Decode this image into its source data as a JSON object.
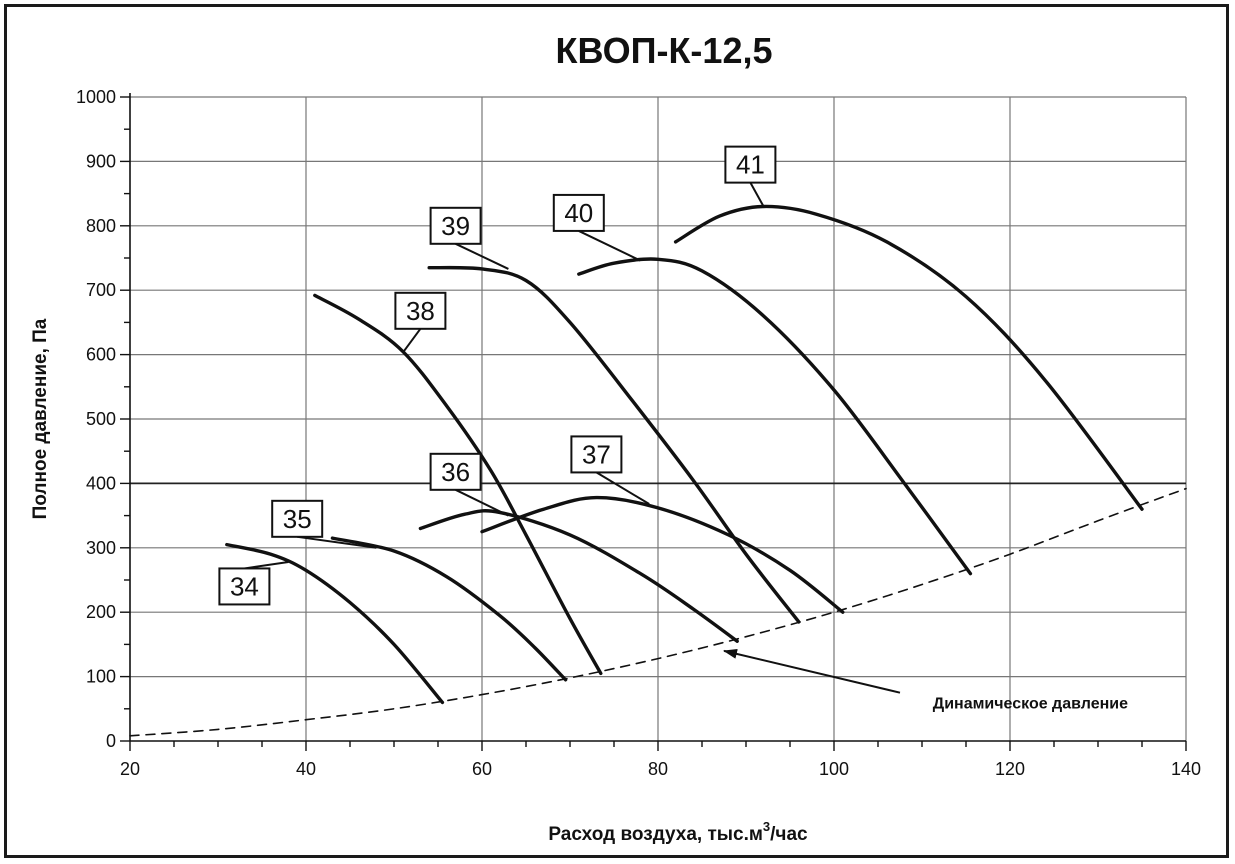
{
  "chart_data": {
    "type": "line",
    "title": "КВОП-К-12,5",
    "xlabel": "Расход воздуха, тыс.м",
    "xlabel_sup": "3",
    "xlabel_suffix": "/час",
    "ylabel": "Полное давление, Па",
    "xlim": [
      20,
      140
    ],
    "ylim": [
      0,
      1000
    ],
    "x_ticks": [
      "20",
      "40",
      "60",
      "80",
      "100",
      "120",
      "140"
    ],
    "y_ticks": [
      "0",
      "100",
      "200",
      "300",
      "400",
      "500",
      "600",
      "700",
      "800",
      "900",
      "1000"
    ],
    "grid": true,
    "series": [
      {
        "name": "34",
        "points": [
          [
            31,
            305
          ],
          [
            36,
            290
          ],
          [
            40,
            265
          ],
          [
            45,
            215
          ],
          [
            50,
            150
          ],
          [
            55.5,
            60
          ]
        ]
      },
      {
        "name": "35",
        "points": [
          [
            43,
            315
          ],
          [
            50,
            295
          ],
          [
            56,
            255
          ],
          [
            62,
            195
          ],
          [
            66,
            145
          ],
          [
            69.5,
            95
          ]
        ]
      },
      {
        "name": "36",
        "points": [
          [
            53,
            330
          ],
          [
            58,
            352
          ],
          [
            62,
            355
          ],
          [
            70,
            320
          ],
          [
            78,
            260
          ],
          [
            84,
            205
          ],
          [
            89,
            155
          ]
        ]
      },
      {
        "name": "37",
        "points": [
          [
            60,
            325
          ],
          [
            67,
            360
          ],
          [
            73,
            378
          ],
          [
            80,
            362
          ],
          [
            88,
            320
          ],
          [
            95,
            265
          ],
          [
            101,
            200
          ]
        ]
      },
      {
        "name": "38",
        "points": [
          [
            41,
            692
          ],
          [
            46,
            655
          ],
          [
            51,
            605
          ],
          [
            56,
            520
          ],
          [
            61,
            420
          ],
          [
            65,
            320
          ],
          [
            70,
            190
          ],
          [
            73.5,
            105
          ]
        ]
      },
      {
        "name": "39",
        "points": [
          [
            54,
            735
          ],
          [
            60,
            733
          ],
          [
            65,
            715
          ],
          [
            70,
            650
          ],
          [
            77,
            530
          ],
          [
            84,
            405
          ],
          [
            90,
            290
          ],
          [
            96,
            185
          ]
        ]
      },
      {
        "name": "40",
        "points": [
          [
            71,
            725
          ],
          [
            75,
            742
          ],
          [
            80,
            748
          ],
          [
            85,
            730
          ],
          [
            92,
            660
          ],
          [
            100,
            545
          ],
          [
            108,
            400
          ],
          [
            115.5,
            260
          ]
        ]
      },
      {
        "name": "41",
        "points": [
          [
            82,
            775
          ],
          [
            87,
            815
          ],
          [
            92,
            830
          ],
          [
            98,
            818
          ],
          [
            106,
            775
          ],
          [
            115,
            690
          ],
          [
            124,
            560
          ],
          [
            135,
            360
          ]
        ]
      },
      {
        "name": "Динамическое давление",
        "dashed": true,
        "points": [
          [
            20,
            8
          ],
          [
            30,
            18
          ],
          [
            40,
            33
          ],
          [
            50,
            50
          ],
          [
            60,
            72
          ],
          [
            70,
            98
          ],
          [
            80,
            128
          ],
          [
            90,
            162
          ],
          [
            100,
            200
          ],
          [
            110,
            243
          ],
          [
            120,
            290
          ],
          [
            130,
            342
          ],
          [
            140,
            392
          ]
        ]
      }
    ],
    "callouts": [
      {
        "label": "34",
        "box_x": 33,
        "box_y": 240,
        "tip": [
          38,
          278
        ]
      },
      {
        "label": "35",
        "box_x": 39,
        "box_y": 345,
        "tip": [
          48,
          300
        ]
      },
      {
        "label": "36",
        "box_x": 57,
        "box_y": 418,
        "tip": [
          63,
          350
        ]
      },
      {
        "label": "37",
        "box_x": 73,
        "box_y": 445,
        "tip": [
          79,
          368
        ]
      },
      {
        "label": "38",
        "box_x": 53,
        "box_y": 668,
        "tip": [
          51,
          603
        ]
      },
      {
        "name": "39",
        "label": "39",
        "box_x": 57,
        "box_y": 800,
        "tip": [
          63,
          733
        ]
      },
      {
        "label": "40",
        "box_x": 71,
        "box_y": 820,
        "tip": [
          78,
          746
        ]
      },
      {
        "label": "41",
        "box_x": 90.5,
        "box_y": 895,
        "tip": [
          92,
          830
        ]
      }
    ],
    "annotation": {
      "text": "Динамическое давление",
      "arrow_tip": [
        87.5,
        140
      ],
      "arrow_tail": [
        107.5,
        75
      ],
      "text_at": [
        111,
        60
      ]
    }
  }
}
